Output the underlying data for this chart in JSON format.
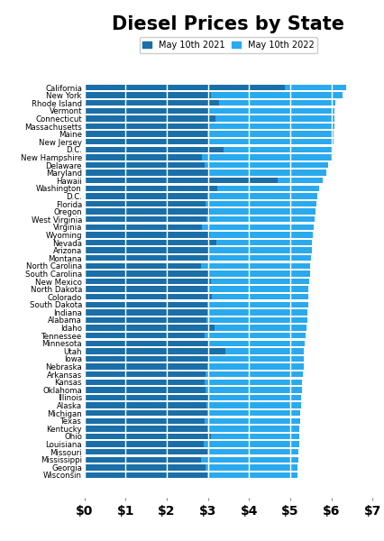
{
  "title": "Diesel Prices by State",
  "legend_2021": "May 10th 2021",
  "legend_2022": "May 10th 2022",
  "color_2021": "#1a6fa8",
  "color_2022": "#29aaee",
  "background_color": "#ffffff",
  "states": [
    "California",
    "New York",
    "Rhode Island",
    "Vermont",
    "Connecticut",
    "Massachusetts",
    "Maine",
    "New Jersey",
    "D.C.",
    "New Hampshire",
    "Delaware",
    "Maryland",
    "Hawaii",
    "Washington",
    "D.C.",
    "Florida",
    "Oregon",
    "West Virginia",
    "Virginia",
    "Wyoming",
    "Nevada",
    "Arizona",
    "Montana",
    "North Carolina",
    "South Carolina",
    "New Mexico",
    "North Dakota",
    "Colorado",
    "South Dakota",
    "Indiana",
    "Alabama",
    "Idaho",
    "Tennessee",
    "Minnesota",
    "Utah",
    "Iowa",
    "Nebraska",
    "Arkansas",
    "Kansas",
    "Oklahoma",
    "Illinois",
    "Alaska",
    "Michigan",
    "Texas",
    "Kentucky",
    "Ohio",
    "Louisiana",
    "Missouri",
    "Mississippi",
    "Georgia",
    "Wisconsin"
  ],
  "values_2022": [
    6.35,
    6.28,
    6.1,
    6.08,
    6.08,
    6.07,
    6.06,
    6.05,
    6.03,
    6.02,
    5.93,
    5.87,
    5.8,
    5.7,
    5.66,
    5.63,
    5.61,
    5.6,
    5.57,
    5.55,
    5.53,
    5.52,
    5.5,
    5.49,
    5.48,
    5.47,
    5.45,
    5.44,
    5.43,
    5.42,
    5.41,
    5.4,
    5.37,
    5.36,
    5.34,
    5.33,
    5.32,
    5.3,
    5.29,
    5.28,
    5.27,
    5.26,
    5.25,
    5.24,
    5.23,
    5.22,
    5.21,
    5.2,
    5.19,
    5.18,
    5.17
  ],
  "values_2021": [
    4.88,
    3.08,
    3.28,
    3.03,
    3.18,
    3.0,
    2.98,
    3.0,
    3.38,
    2.85,
    2.93,
    3.03,
    4.7,
    3.23,
    2.98,
    2.95,
    3.06,
    2.96,
    2.85,
    3.06,
    3.2,
    3.04,
    3.01,
    2.83,
    3.03,
    3.08,
    2.98,
    3.1,
    2.98,
    2.98,
    2.96,
    3.16,
    2.91,
    3.01,
    3.43,
    3.01,
    2.98,
    2.95,
    2.92,
    2.95,
    3.0,
    2.96,
    2.98,
    2.93,
    2.98,
    3.08,
    2.9,
    2.99,
    2.83,
    2.95,
    2.98
  ],
  "xlim": [
    0,
    7
  ],
  "xticks": [
    0,
    1,
    2,
    3,
    4,
    5,
    6,
    7
  ],
  "xticklabels": [
    "$0",
    "$1",
    "$2",
    "$3",
    "$4",
    "$5",
    "$6",
    "$7"
  ]
}
